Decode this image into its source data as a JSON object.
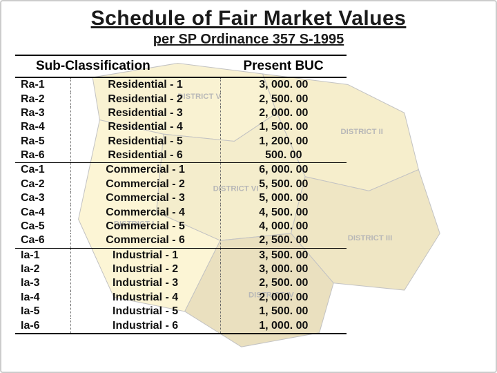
{
  "header": {
    "title": "Schedule of Fair Market Values",
    "subtitle": "per SP Ordinance 357 S-1995"
  },
  "table": {
    "columns": [
      "Sub-Classification",
      "Present BUC"
    ],
    "rows": [
      {
        "code": "Ra-1",
        "desc": "Residential - 1",
        "buc": "3, 000. 00"
      },
      {
        "code": "Ra-2",
        "desc": "Residential - 2",
        "buc": "2, 500. 00"
      },
      {
        "code": "Ra-3",
        "desc": "Residential - 3",
        "buc": "2, 000. 00"
      },
      {
        "code": "Ra-4",
        "desc": "Residential - 4",
        "buc": "1, 500. 00"
      },
      {
        "code": "Ra-5",
        "desc": "Residential - 5",
        "buc": "1, 200. 00"
      },
      {
        "code": "Ra-6",
        "desc": "Residential - 6",
        "buc": "500. 00"
      },
      {
        "code": "Ca-1",
        "desc": "Commercial - 1",
        "buc": "6, 000. 00"
      },
      {
        "code": "Ca-2",
        "desc": "Commercial - 2",
        "buc": "5, 500. 00"
      },
      {
        "code": "Ca-3",
        "desc": "Commercial - 3",
        "buc": "5, 000. 00"
      },
      {
        "code": "Ca-4",
        "desc": "Commercial - 4",
        "buc": "4, 500. 00"
      },
      {
        "code": "Ca-5",
        "desc": "Commercial - 5",
        "buc": "4, 000. 00"
      },
      {
        "code": "Ca-6",
        "desc": "Commercial - 6",
        "buc": "2, 500. 00"
      },
      {
        "code": "Ia-1",
        "desc": "Industrial - 1",
        "buc": "3, 500. 00"
      },
      {
        "code": "Ia-2",
        "desc": "Industrial - 2",
        "buc": "3, 000. 00"
      },
      {
        "code": "Ia-3",
        "desc": "Industrial - 3",
        "buc": "2, 500. 00"
      },
      {
        "code": "Ia-4",
        "desc": "Industrial - 4",
        "buc": "2, 000. 00"
      },
      {
        "code": "Ia-5",
        "desc": "Industrial - 5",
        "buc": "1, 500. 00"
      },
      {
        "code": "Ia-6",
        "desc": "Industrial - 6",
        "buc": "1, 000. 00"
      }
    ],
    "section_breaks": [
      5,
      11
    ]
  },
  "map": {
    "districts": [
      "DISTRICT I",
      "DISTRICT II",
      "DISTRICT III",
      "DISTRICT IV",
      "DISTRICT V",
      "DISTRICT VI"
    ],
    "colors": {
      "d1": "#f8e48a",
      "d2": "#e8d070",
      "d3": "#d4b85a",
      "d4": "#c4a84a",
      "d5": "#f0dc80",
      "d6": "#e0cc70",
      "outline": "#444444",
      "label": "#333333"
    }
  }
}
